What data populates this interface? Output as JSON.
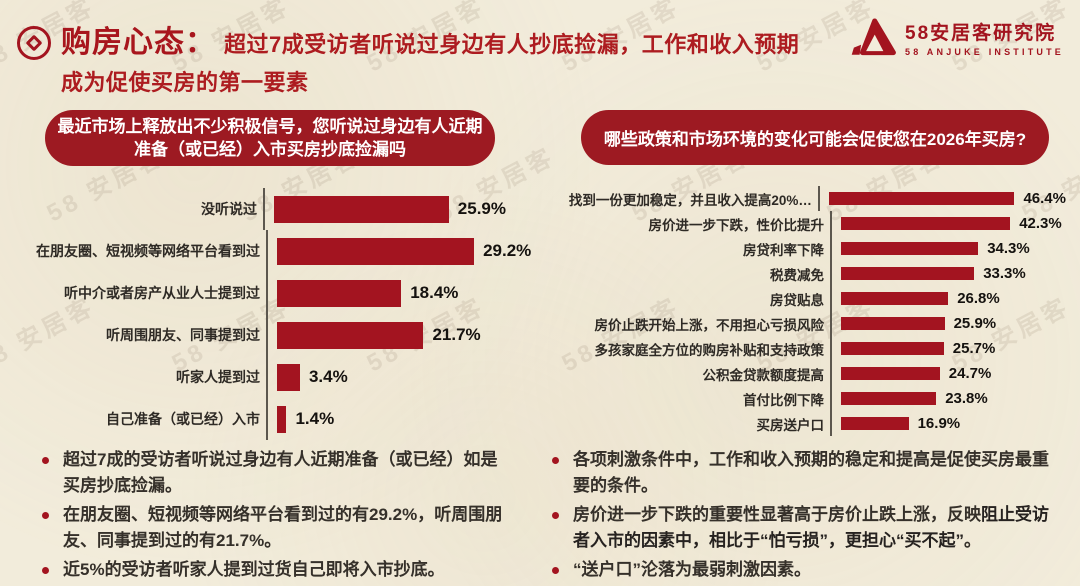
{
  "colors": {
    "bar": "#a31420",
    "question_box": "#9d1a22",
    "title_red": "#ad1c20",
    "background": "#f2ecdb",
    "text": "#35302a"
  },
  "watermark": "58 安居客",
  "header": {
    "title": "购房心态：",
    "subtitle_line1": "超过7成受访者听说过身边有人抄底捡漏，工作和收入预期",
    "subtitle_line2": "成为促使买房的第一要素",
    "logo_cn": "58安居客研究院",
    "logo_en": "58 ANJUKE INSTITUTE"
  },
  "left": {
    "question_line1": "最近市场上释放出不少积极信号，您听说过身边有人近期",
    "question_line2": "准备（或已经）入市买房抄底捡漏吗"
  },
  "right": {
    "question": "哪些政策和市场环境的变化可能会促使您在2026年买房?"
  },
  "chart_data": [
    {
      "type": "bar",
      "orientation": "horizontal",
      "title": "最近市场上释放出不少积极信号，您听说过身边有人近期准备（或已经）入市买房抄底捡漏吗",
      "categories": [
        "没听说过",
        "在朋友圈、短视频等网络平台看到过",
        "听中介或者房产从业人士提到过",
        "听周围朋友、同事提到过",
        "听家人提到过",
        "自己准备（或已经）入市"
      ],
      "values": [
        25.9,
        29.2,
        18.4,
        21.7,
        3.4,
        1.4
      ],
      "unit": "%",
      "xlim": [
        0,
        30
      ],
      "grid": false,
      "legend": false,
      "bar_color": "#a31420"
    },
    {
      "type": "bar",
      "orientation": "horizontal",
      "title": "哪些政策和市场环境的变化可能会促使您在2026年买房?",
      "categories": [
        "找到一份更加稳定，并且收入提高20%…",
        "房价进一步下跌，性价比提升",
        "房贷利率下降",
        "税费减免",
        "房贷贴息",
        "房价止跌开始上涨，不用担心亏损风险",
        "多孩家庭全方位的购房补贴和支持政策",
        "公积金贷款额度提高",
        "首付比例下降",
        "买房送户口"
      ],
      "values": [
        46.4,
        42.3,
        34.3,
        33.3,
        26.8,
        25.9,
        25.7,
        24.7,
        23.8,
        16.9
      ],
      "unit": "%",
      "xlim": [
        0,
        50
      ],
      "grid": false,
      "legend": false,
      "bar_color": "#a31420"
    }
  ],
  "insights_left": [
    [
      {
        "t": "超过7成的受访者听说过身边有人近期准备（或已经）如是买房抄底捡漏。",
        "b": false
      }
    ],
    [
      {
        "t": "在朋友圈、短视频等网络平台看到过的有29.2%，听周围朋友、同事提到过的有21.7%。",
        "b": false
      }
    ],
    [
      {
        "t": "近5%的受访者听家人提到过货自己即将入市抄底。",
        "b": false
      }
    ]
  ],
  "insights_right": [
    [
      {
        "t": "各项刺激条件中，工作和收入预期的稳定和提高是促使买房最重要的条件。",
        "b": false
      }
    ],
    [
      {
        "t": "房价进一步下跌的重要性显著高于房价止跌上涨，反映",
        "b": false
      },
      {
        "t": "阻止受访者入市的因素中，相比于“怕亏损”，更担心“买不起”",
        "b": true
      },
      {
        "t": "。",
        "b": false
      }
    ],
    [
      {
        "t": "“送户口”沦落为最弱刺激因素。",
        "b": false
      }
    ]
  ]
}
